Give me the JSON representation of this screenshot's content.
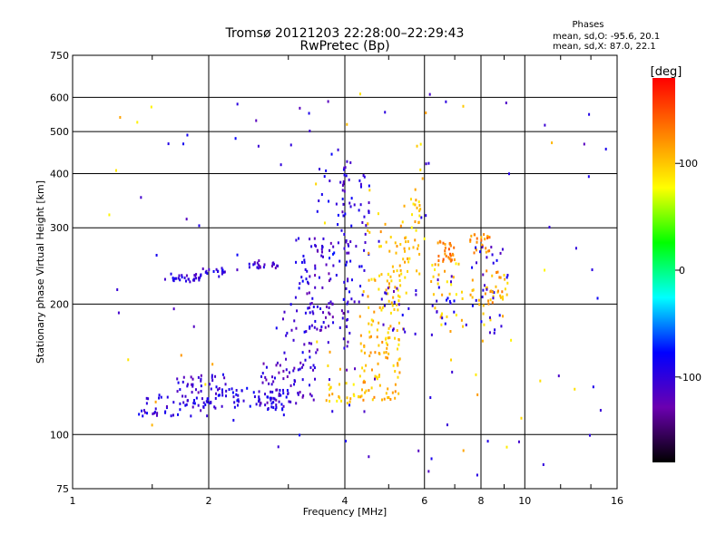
{
  "chart_data": {
    "type": "scatter",
    "title": "Tromsø 20121203 22:28:00–22:29:43",
    "subtitle": "RwPretec (Bp)",
    "xlabel": "Frequency [MHz]",
    "ylabel": "Stationary phase Virtual Height [km]",
    "xscale": "log",
    "yscale": "log",
    "xlim": [
      1,
      16
    ],
    "ylim": [
      75,
      750
    ],
    "xticks": [
      "1",
      "2",
      "4",
      "6",
      "8",
      "10",
      "16"
    ],
    "xtick_values": [
      1,
      2,
      4,
      6,
      8,
      10,
      16
    ],
    "yticks": [
      "75",
      "100",
      "200",
      "300",
      "400",
      "500",
      "600",
      "750"
    ],
    "ytick_values": [
      75,
      100,
      200,
      300,
      400,
      500,
      600,
      750
    ],
    "grid": true,
    "legend": {
      "title": "Phases",
      "entries": [
        "mean, sd,O: -95.6, 20.1",
        "mean, sd,X:  87.0, 22.1"
      ],
      "placement": "top-right"
    },
    "colorbar": {
      "label": "[deg]",
      "range": [
        -180,
        180
      ],
      "ticks": [
        "100",
        "0",
        "-100"
      ],
      "tick_values": [
        100,
        0,
        -100
      ],
      "colors": [
        "#000000",
        "#6b00b0",
        "#0000ff",
        "#00ffff",
        "#00ff00",
        "#ffff00",
        "#ff8000",
        "#ff0000"
      ]
    },
    "series": [
      {
        "xmin": 1.6,
        "xmax": 1.92,
        "ymin": 225,
        "ymax": 236,
        "count": 28,
        "phase": -100
      },
      {
        "xmin": 1.92,
        "xmax": 2.2,
        "ymin": 230,
        "ymax": 242,
        "count": 18,
        "phase": -100
      },
      {
        "xmin": 2.4,
        "xmax": 2.95,
        "ymin": 242,
        "ymax": 252,
        "count": 22,
        "phase": -110
      },
      {
        "xmin": 1.4,
        "xmax": 2.0,
        "ymin": 110,
        "ymax": 124,
        "count": 55,
        "phase": -100
      },
      {
        "xmin": 1.7,
        "xmax": 2.2,
        "ymin": 124,
        "ymax": 138,
        "count": 35,
        "phase": -105
      },
      {
        "xmin": 2.0,
        "xmax": 3.0,
        "ymin": 114,
        "ymax": 128,
        "count": 70,
        "phase": -95
      },
      {
        "xmin": 2.6,
        "xmax": 3.5,
        "ymin": 118,
        "ymax": 150,
        "count": 60,
        "phase": -110
      },
      {
        "xmin": 2.9,
        "xmax": 3.5,
        "ymin": 140,
        "ymax": 200,
        "count": 25,
        "phase": -100
      },
      {
        "xmin": 3.1,
        "xmax": 3.4,
        "ymin": 190,
        "ymax": 290,
        "count": 20,
        "phase": -95
      },
      {
        "xmin": 3.3,
        "xmax": 3.8,
        "ymin": 150,
        "ymax": 290,
        "count": 60,
        "phase": -110
      },
      {
        "xmin": 3.5,
        "xmax": 3.95,
        "ymin": 250,
        "ymax": 470,
        "count": 20,
        "phase": -90
      },
      {
        "xmin": 3.95,
        "xmax": 4.15,
        "ymin": 200,
        "ymax": 430,
        "count": 45,
        "phase": -100
      },
      {
        "xmin": 3.9,
        "xmax": 4.1,
        "ymin": 140,
        "ymax": 200,
        "count": 15,
        "phase": -110
      },
      {
        "xmin": 4.2,
        "xmax": 4.6,
        "ymin": 200,
        "ymax": 400,
        "count": 25,
        "phase": -100
      },
      {
        "xmin": 3.6,
        "xmax": 4.4,
        "ymin": 118,
        "ymax": 132,
        "count": 25,
        "phase": 100
      },
      {
        "xmin": 4.3,
        "xmax": 5.3,
        "ymin": 120,
        "ymax": 170,
        "count": 70,
        "phase": 110
      },
      {
        "xmin": 4.5,
        "xmax": 5.4,
        "ymin": 160,
        "ymax": 240,
        "count": 50,
        "phase": 100
      },
      {
        "xmin": 4.4,
        "xmax": 5.6,
        "ymin": 200,
        "ymax": 330,
        "count": 40,
        "phase": 105
      },
      {
        "xmin": 5.4,
        "xmax": 6.0,
        "ymin": 230,
        "ymax": 340,
        "count": 30,
        "phase": 100
      },
      {
        "xmin": 5.6,
        "xmax": 6.0,
        "ymin": 340,
        "ymax": 470,
        "count": 8,
        "phase": 100
      },
      {
        "xmin": 4.8,
        "xmax": 5.8,
        "ymin": 170,
        "ymax": 220,
        "count": 18,
        "phase": -110
      },
      {
        "xmin": 6.4,
        "xmax": 7.0,
        "ymin": 250,
        "ymax": 280,
        "count": 30,
        "phase": 130
      },
      {
        "xmin": 6.2,
        "xmax": 7.3,
        "ymin": 170,
        "ymax": 250,
        "count": 30,
        "phase": 100
      },
      {
        "xmin": 6.2,
        "xmax": 7.0,
        "ymin": 180,
        "ymax": 230,
        "count": 15,
        "phase": -100
      },
      {
        "xmin": 7.5,
        "xmax": 8.4,
        "ymin": 260,
        "ymax": 290,
        "count": 25,
        "phase": 125
      },
      {
        "xmin": 7.5,
        "xmax": 9.2,
        "ymin": 180,
        "ymax": 240,
        "count": 30,
        "phase": 110
      },
      {
        "xmin": 7.6,
        "xmax": 9.0,
        "ymin": 170,
        "ymax": 280,
        "count": 25,
        "phase": -100
      },
      {
        "xmin": 8.3,
        "xmax": 9.0,
        "ymin": 200,
        "ymax": 215,
        "count": 10,
        "phase": 115
      },
      {
        "xmin": 1.2,
        "xmax": 15.5,
        "ymin": 80,
        "ymax": 620,
        "count": 90,
        "phase": -100
      },
      {
        "xmin": 1.2,
        "xmax": 13.0,
        "ymin": 85,
        "ymax": 640,
        "count": 40,
        "phase": 100
      }
    ]
  }
}
